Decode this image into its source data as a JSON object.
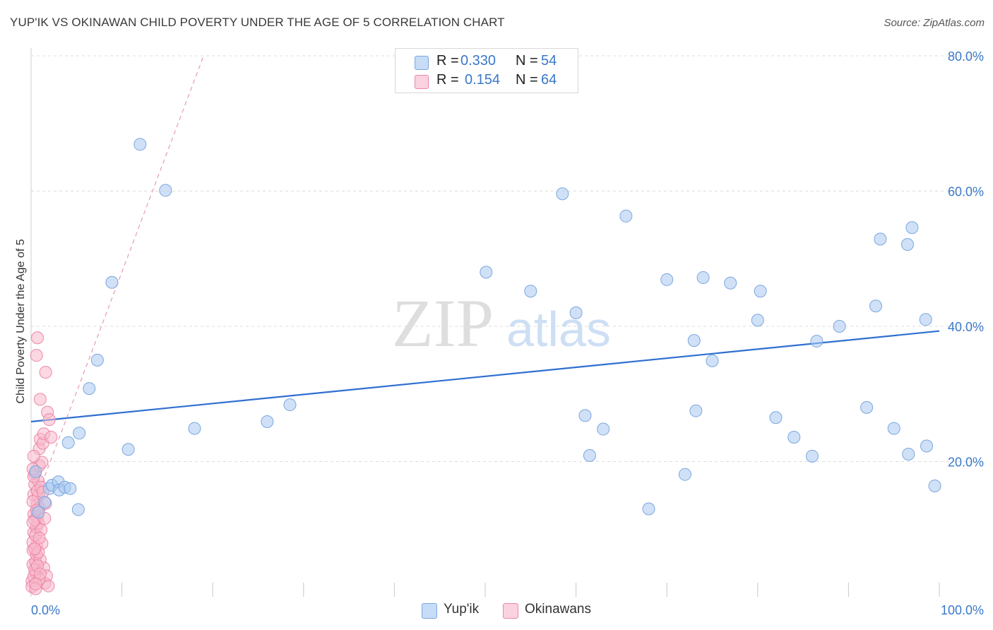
{
  "header": {
    "title": "YUP'IK VS OKINAWAN CHILD POVERTY UNDER THE AGE OF 5 CORRELATION CHART",
    "source": "Source: ZipAtlas.com"
  },
  "watermark": {
    "zip": "ZIP",
    "atlas": "atlas"
  },
  "legend_top": {
    "rows": [
      {
        "r_label": "R =",
        "r_value": "0.330",
        "n_label": "N =",
        "n_value": "54",
        "color": "#a9c8f0"
      },
      {
        "r_label": "R =",
        "r_value": "0.154",
        "n_label": "N =",
        "n_value": "64",
        "color": "#f7b8cb"
      }
    ]
  },
  "legend_bottom": {
    "items": [
      {
        "label": "Yup'ik",
        "color": "#a9c8f0"
      },
      {
        "label": "Okinawans",
        "color": "#f7b8cb"
      }
    ]
  },
  "chart_data": {
    "type": "scatter",
    "title": "YUP'IK VS OKINAWAN CHILD POVERTY UNDER THE AGE OF 5 CORRELATION CHART",
    "xlabel": "",
    "ylabel": "Child Poverty Under the Age of 5",
    "xlim": [
      0,
      100
    ],
    "ylim": [
      0,
      80
    ],
    "x_tick_labels": [
      "0.0%",
      "100.0%"
    ],
    "y_tick_labels": [
      "20.0%",
      "40.0%",
      "60.0%",
      "80.0%"
    ],
    "y_ticks": [
      20,
      40,
      60,
      80
    ],
    "grid": true,
    "legend_position": "top-center",
    "series": [
      {
        "name": "Yup'ik",
        "color": "#a9c8f0",
        "stroke": "#7aa6df",
        "points": [
          [
            0.5,
            18.5
          ],
          [
            0.8,
            12.5
          ],
          [
            1.5,
            14.0
          ],
          [
            2.0,
            16.0
          ],
          [
            2.3,
            16.5
          ],
          [
            3.0,
            17.0
          ],
          [
            3.1,
            15.8
          ],
          [
            3.7,
            16.2
          ],
          [
            4.1,
            22.8
          ],
          [
            4.3,
            16.0
          ],
          [
            5.2,
            12.9
          ],
          [
            5.3,
            24.2
          ],
          [
            6.4,
            30.8
          ],
          [
            7.3,
            35.0
          ],
          [
            8.9,
            46.5
          ],
          [
            10.7,
            21.8
          ],
          [
            12.0,
            66.9
          ],
          [
            14.8,
            60.1
          ],
          [
            18.0,
            24.9
          ],
          [
            26.0,
            25.9
          ],
          [
            28.5,
            28.4
          ],
          [
            50.1,
            48.0
          ],
          [
            55.0,
            45.2
          ],
          [
            58.5,
            59.6
          ],
          [
            60.0,
            42.0
          ],
          [
            61.0,
            26.8
          ],
          [
            61.5,
            20.9
          ],
          [
            63.0,
            24.8
          ],
          [
            65.5,
            56.3
          ],
          [
            68.0,
            13.0
          ],
          [
            70.0,
            46.9
          ],
          [
            72.0,
            18.1
          ],
          [
            73.0,
            37.9
          ],
          [
            73.2,
            27.5
          ],
          [
            74.0,
            47.2
          ],
          [
            75.0,
            34.9
          ],
          [
            77.0,
            46.4
          ],
          [
            80.0,
            40.9
          ],
          [
            80.3,
            45.2
          ],
          [
            82.0,
            26.5
          ],
          [
            84.0,
            23.6
          ],
          [
            86.0,
            20.8
          ],
          [
            86.5,
            37.8
          ],
          [
            89.0,
            40.0
          ],
          [
            92.0,
            28.0
          ],
          [
            93.0,
            43.0
          ],
          [
            93.5,
            52.9
          ],
          [
            95.0,
            24.9
          ],
          [
            96.5,
            52.1
          ],
          [
            96.6,
            21.1
          ],
          [
            97.0,
            54.6
          ],
          [
            98.5,
            41.0
          ],
          [
            98.6,
            22.3
          ],
          [
            99.5,
            16.4
          ]
        ]
      },
      {
        "name": "Okinawans",
        "color": "#f7b8cb",
        "stroke": "#ec87a6",
        "points": [
          [
            0.1,
            2.3
          ],
          [
            0.2,
            4.8
          ],
          [
            0.2,
            6.9
          ],
          [
            0.3,
            9.5
          ],
          [
            0.3,
            12.2
          ],
          [
            0.3,
            15.1
          ],
          [
            0.4,
            16.6
          ],
          [
            0.4,
            18.2
          ],
          [
            0.5,
            3.6
          ],
          [
            0.5,
            5.1
          ],
          [
            0.6,
            7.5
          ],
          [
            0.6,
            10.3
          ],
          [
            0.7,
            11.8
          ],
          [
            0.7,
            13.6
          ],
          [
            0.8,
            14.9
          ],
          [
            0.8,
            17.1
          ],
          [
            0.9,
            19.4
          ],
          [
            0.9,
            21.9
          ],
          [
            1.0,
            23.3
          ],
          [
            1.0,
            29.2
          ],
          [
            0.6,
            35.7
          ],
          [
            0.7,
            38.3
          ],
          [
            0.1,
            1.5
          ],
          [
            0.3,
            3.0
          ],
          [
            0.4,
            4.0
          ],
          [
            0.6,
            6.2
          ],
          [
            0.2,
            8.1
          ],
          [
            0.5,
            9.1
          ],
          [
            0.8,
            10.9
          ],
          [
            0.4,
            11.4
          ],
          [
            0.9,
            13.1
          ],
          [
            0.2,
            14.1
          ],
          [
            0.7,
            15.7
          ],
          [
            1.1,
            16.2
          ],
          [
            0.3,
            17.8
          ],
          [
            1.2,
            19.9
          ],
          [
            1.3,
            22.7
          ],
          [
            1.4,
            24.1
          ],
          [
            1.6,
            33.2
          ],
          [
            1.8,
            27.3
          ],
          [
            2.0,
            26.2
          ],
          [
            2.2,
            23.6
          ],
          [
            1.2,
            7.9
          ],
          [
            1.4,
            4.3
          ],
          [
            1.5,
            2.0
          ],
          [
            1.7,
            3.1
          ],
          [
            1.9,
            1.6
          ],
          [
            1.0,
            5.5
          ],
          [
            0.9,
            2.6
          ],
          [
            0.5,
            1.2
          ],
          [
            1.1,
            9.9
          ],
          [
            0.6,
            12.8
          ],
          [
            0.3,
            20.8
          ],
          [
            1.3,
            15.5
          ],
          [
            0.8,
            6.6
          ],
          [
            0.4,
            7.1
          ],
          [
            1.5,
            11.6
          ],
          [
            0.2,
            18.9
          ],
          [
            0.7,
            4.6
          ],
          [
            1.0,
            3.4
          ],
          [
            0.5,
            1.9
          ],
          [
            1.6,
            13.8
          ],
          [
            0.9,
            8.7
          ],
          [
            0.2,
            11.0
          ]
        ]
      }
    ],
    "trendlines": [
      {
        "series": "Yup'ik",
        "style": "solid",
        "color": "#2f6fd0",
        "x": [
          0,
          100
        ],
        "y": [
          25.9,
          39.3
        ]
      },
      {
        "series": "Okinawans",
        "style": "dashed",
        "color": "#e79ab3",
        "x": [
          0,
          19
        ],
        "y": [
          12.5,
          80
        ]
      }
    ]
  }
}
